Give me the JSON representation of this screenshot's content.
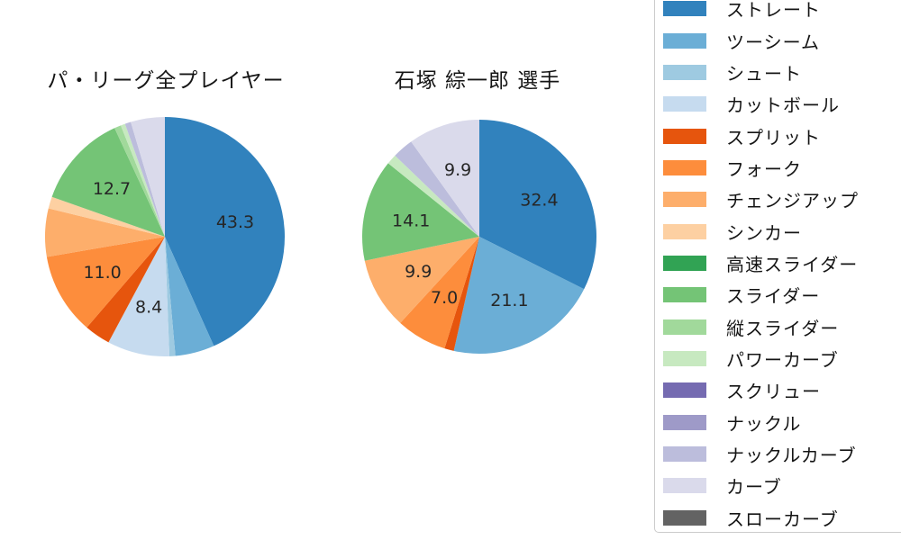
{
  "chart_data": [
    {
      "type": "pie",
      "title": "パ・リーグ全プレイヤー",
      "units": "%",
      "start_angle": "top",
      "direction": "clockwise",
      "pct_label_distance": 0.6,
      "slices": [
        {
          "label": "ストレート",
          "value": 43.3,
          "color": "#3182bd",
          "pct": "43.3"
        },
        {
          "label": "ツーシーム",
          "value": 5.3,
          "color": "#6baed6",
          "pct": null
        },
        {
          "label": "シュート",
          "value": 0.8,
          "color": "#9ecae1",
          "pct": null
        },
        {
          "label": "カットボール",
          "value": 8.4,
          "color": "#c6dbef",
          "pct": "8.4"
        },
        {
          "label": "スプリット",
          "value": 3.5,
          "color": "#e6550d",
          "pct": null
        },
        {
          "label": "フォーク",
          "value": 11.0,
          "color": "#fd8d3c",
          "pct": "11.0"
        },
        {
          "label": "チェンジアップ",
          "value": 6.5,
          "color": "#fdae6b",
          "pct": null
        },
        {
          "label": "シンカー",
          "value": 1.6,
          "color": "#fdd0a2",
          "pct": null
        },
        {
          "label": "スライダー",
          "value": 12.7,
          "color": "#74c476",
          "pct": "12.7"
        },
        {
          "label": "縦スライダー",
          "value": 0.9,
          "color": "#a1d99b",
          "pct": null
        },
        {
          "label": "パワーカーブ",
          "value": 0.6,
          "color": "#c7e9c0",
          "pct": null
        },
        {
          "label": "ナックルカーブ",
          "value": 0.8,
          "color": "#bcbddc",
          "pct": null
        },
        {
          "label": "カーブ",
          "value": 4.6,
          "color": "#dadaeb",
          "pct": null
        }
      ]
    },
    {
      "type": "pie",
      "title": "石塚 綜一郎 選手",
      "units": "%",
      "start_angle": "top",
      "direction": "clockwise",
      "pct_label_distance": 0.6,
      "slices": [
        {
          "label": "ストレート",
          "value": 32.4,
          "color": "#3182bd",
          "pct": "32.4"
        },
        {
          "label": "ツーシーム",
          "value": 21.1,
          "color": "#6baed6",
          "pct": "21.1"
        },
        {
          "label": "スプリット",
          "value": 1.3,
          "color": "#e6550d",
          "pct": null
        },
        {
          "label": "フォーク",
          "value": 7.0,
          "color": "#fd8d3c",
          "pct": "7.0"
        },
        {
          "label": "チェンジアップ",
          "value": 9.9,
          "color": "#fdae6b",
          "pct": "9.9"
        },
        {
          "label": "スライダー",
          "value": 14.1,
          "color": "#74c476",
          "pct": "14.1"
        },
        {
          "label": "パワーカーブ",
          "value": 1.4,
          "color": "#c7e9c0",
          "pct": null
        },
        {
          "label": "ナックルカーブ",
          "value": 2.9,
          "color": "#bcbddc",
          "pct": null
        },
        {
          "label": "カーブ",
          "value": 9.9,
          "color": "#dadaeb",
          "pct": "9.9"
        }
      ]
    }
  ],
  "legend": {
    "position": "right",
    "items": [
      {
        "label": "ストレート",
        "color": "#3182bd"
      },
      {
        "label": "ツーシーム",
        "color": "#6baed6"
      },
      {
        "label": "シュート",
        "color": "#9ecae1"
      },
      {
        "label": "カットボール",
        "color": "#c6dbef"
      },
      {
        "label": "スプリット",
        "color": "#e6550d"
      },
      {
        "label": "フォーク",
        "color": "#fd8d3c"
      },
      {
        "label": "チェンジアップ",
        "color": "#fdae6b"
      },
      {
        "label": "シンカー",
        "color": "#fdd0a2"
      },
      {
        "label": "高速スライダー",
        "color": "#31a354"
      },
      {
        "label": "スライダー",
        "color": "#74c476"
      },
      {
        "label": "縦スライダー",
        "color": "#a1d99b"
      },
      {
        "label": "パワーカーブ",
        "color": "#c7e9c0"
      },
      {
        "label": "スクリュー",
        "color": "#756bb1"
      },
      {
        "label": "ナックル",
        "color": "#9e9ac8"
      },
      {
        "label": "ナックルカーブ",
        "color": "#bcbddc"
      },
      {
        "label": "カーブ",
        "color": "#dadaeb"
      },
      {
        "label": "スローカーブ",
        "color": "#636363"
      }
    ]
  }
}
